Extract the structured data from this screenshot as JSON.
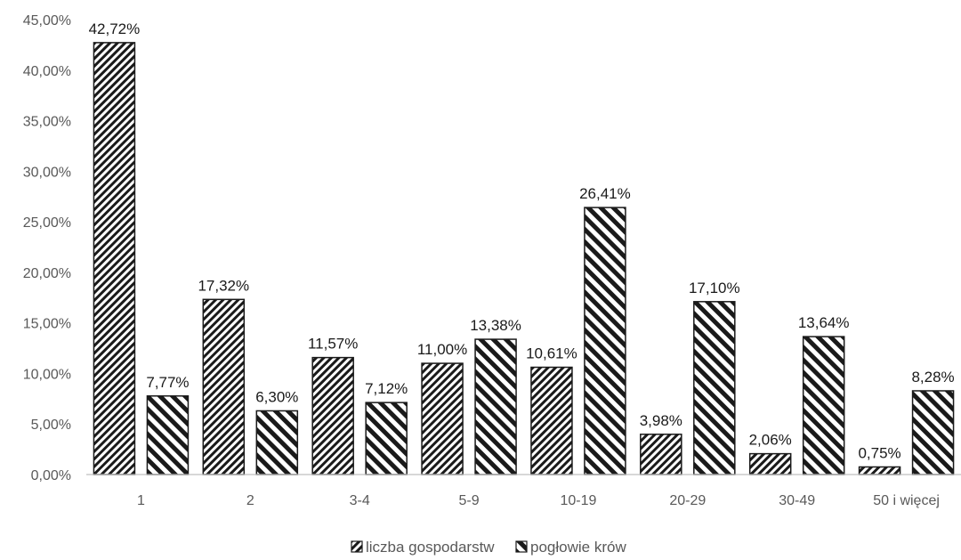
{
  "chart_data": {
    "type": "bar",
    "title": "",
    "xlabel": "",
    "ylabel": "",
    "ylim": [
      0,
      45
    ],
    "ytick_step": 5,
    "ytick_labels": [
      "0,00%",
      "5,00%",
      "10,00%",
      "15,00%",
      "20,00%",
      "25,00%",
      "30,00%",
      "35,00%",
      "40,00%",
      "45,00%"
    ],
    "categories": [
      "1",
      "2",
      "3-4",
      "5-9",
      "10-19",
      "20-29",
      "30-49",
      "50 i więcej"
    ],
    "series": [
      {
        "name": "liczba gospodarstw",
        "pattern": "dense-diagonal",
        "values": [
          42.72,
          17.32,
          11.57,
          11.0,
          10.61,
          3.98,
          2.06,
          0.75
        ],
        "labels": [
          "42,72%",
          "17,32%",
          "11,57%",
          "11,00%",
          "10,61%",
          "3,98%",
          "2,06%",
          "0,75%"
        ]
      },
      {
        "name": "pogłowie krów",
        "pattern": "wide-diagonal",
        "values": [
          7.77,
          6.3,
          7.12,
          13.38,
          26.41,
          17.1,
          13.64,
          8.28
        ],
        "labels": [
          "7,77%",
          "6,30%",
          "7,12%",
          "13,38%",
          "26,41%",
          "17,10%",
          "13,64%",
          "8,28%"
        ]
      }
    ],
    "grid": false,
    "legend_position": "bottom-center",
    "colors": {
      "ink": "#1a1a1a",
      "axis": "#bfbfbf",
      "tick_text": "#595959"
    }
  }
}
